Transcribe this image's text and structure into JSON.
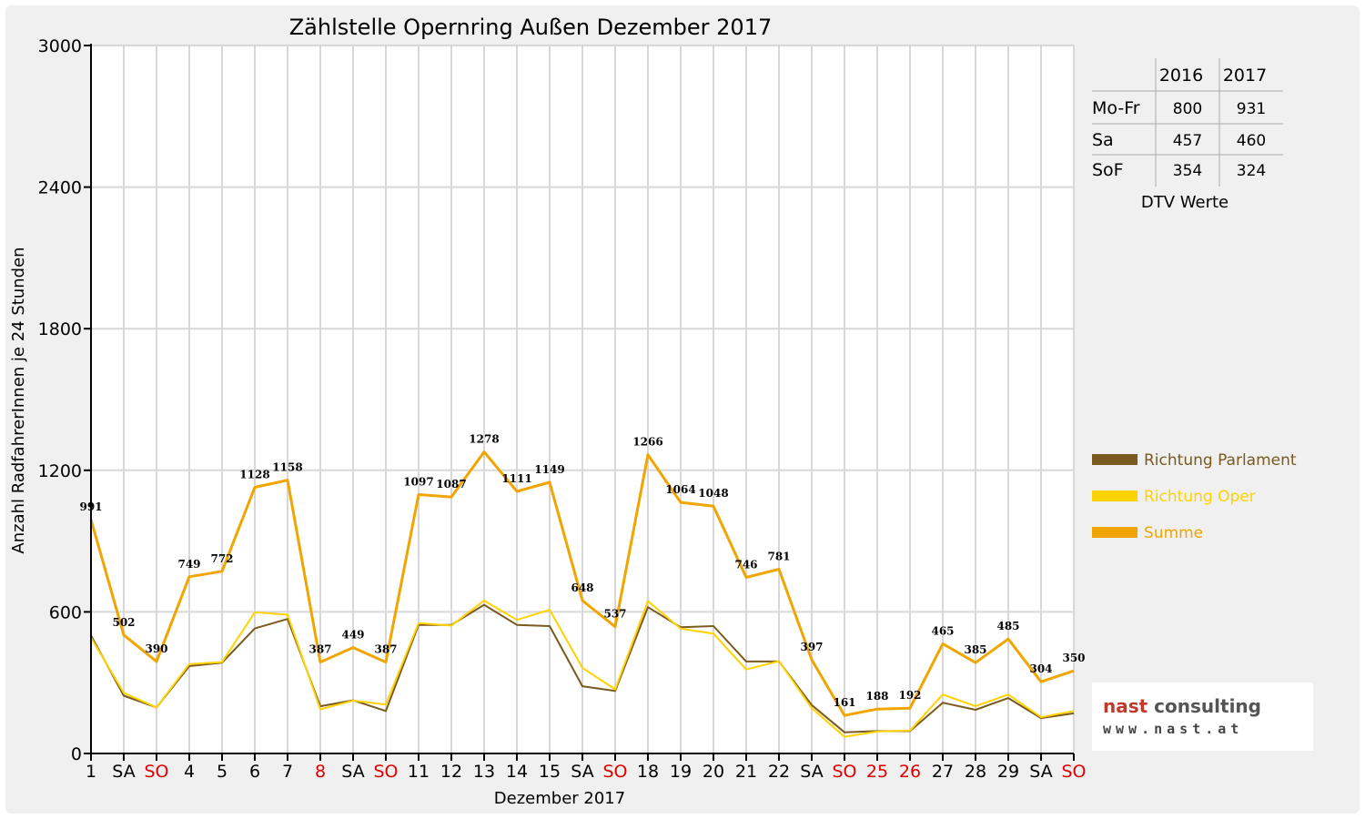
{
  "chart_data": {
    "type": "line",
    "title": "Zählstelle Opernring Außen Dezember 2017",
    "xlabel": "Dezember 2017",
    "ylabel": "Anzahl RadfahrerInnen je 24 Stunden",
    "ylim": [
      0,
      3000
    ],
    "yticks": [
      "0",
      "600",
      "1200",
      "1800",
      "2400",
      "3000"
    ],
    "grid": true,
    "legend_position": "right",
    "categories": [
      "1",
      "SA",
      "SO",
      "4",
      "5",
      "6",
      "7",
      "8",
      "SA",
      "SO",
      "11",
      "12",
      "13",
      "14",
      "15",
      "SA",
      "SO",
      "18",
      "19",
      "20",
      "21",
      "22",
      "SA",
      "SO",
      "25",
      "26",
      "27",
      "28",
      "29",
      "SA",
      "SO"
    ],
    "category_colors": [
      "#000000",
      "#000000",
      "#e00000",
      "#000000",
      "#000000",
      "#000000",
      "#000000",
      "#e00000",
      "#000000",
      "#e00000",
      "#000000",
      "#000000",
      "#000000",
      "#000000",
      "#000000",
      "#000000",
      "#e00000",
      "#000000",
      "#000000",
      "#000000",
      "#000000",
      "#000000",
      "#000000",
      "#e00000",
      "#e00000",
      "#e00000",
      "#000000",
      "#000000",
      "#000000",
      "#000000",
      "#e00000"
    ],
    "series": [
      {
        "name": "Richtung Parlament",
        "color": "#7a5a1e",
        "values": [
          500,
          245,
          195,
          370,
          385,
          530,
          570,
          200,
          225,
          180,
          545,
          545,
          630,
          545,
          540,
          285,
          265,
          620,
          535,
          540,
          390,
          390,
          205,
          90,
          95,
          95,
          215,
          185,
          235,
          150,
          170
        ]
      },
      {
        "name": "Richtung Oper",
        "color": "#ffd200",
        "values": [
          491,
          257,
          195,
          379,
          387,
          598,
          588,
          187,
          224,
          207,
          552,
          542,
          648,
          566,
          609,
          363,
          272,
          646,
          529,
          508,
          356,
          391,
          192,
          71,
          93,
          97,
          250,
          200,
          250,
          154,
          180
        ]
      },
      {
        "name": "Summe",
        "color": "#f0a500",
        "values": [
          991,
          502,
          390,
          749,
          772,
          1128,
          1158,
          387,
          449,
          387,
          1097,
          1087,
          1278,
          1111,
          1149,
          648,
          537,
          1266,
          1064,
          1048,
          746,
          781,
          397,
          161,
          188,
          192,
          465,
          385,
          485,
          304,
          350
        ]
      }
    ],
    "data_labels": [
      "991",
      "502",
      "390",
      "749",
      "772",
      "1128",
      "1158",
      "387",
      "449",
      "387",
      "1097",
      "1087",
      "1278",
      "1111",
      "1149",
      "648",
      "537",
      "1266",
      "1064",
      "1048",
      "746",
      "781",
      "397",
      "161",
      "188",
      "192",
      "465",
      "385",
      "485",
      "304",
      "350"
    ]
  },
  "dtv_table": {
    "headers": [
      "",
      "2016",
      "2017"
    ],
    "rows": [
      [
        "Mo-Fr",
        "800",
        "931"
      ],
      [
        "Sa",
        "457",
        "460"
      ],
      [
        "SoF",
        "354",
        "324"
      ]
    ],
    "caption": "DTV Werte"
  },
  "logo": {
    "line1_a": "nast ",
    "line1_b": "consulting",
    "line2": "www.nast.at"
  }
}
